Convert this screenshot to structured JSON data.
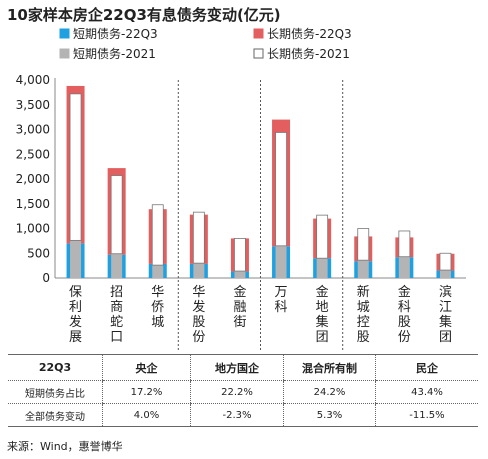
{
  "title": "10家样本房企22Q3有息债务变动(亿元)",
  "chart_data": {
    "type": "bar",
    "categories": [
      "保利发展",
      "招商蛇口",
      "华侨城",
      "华发股份",
      "金融街",
      "万科",
      "金地集团",
      "新城控股",
      "金科股份",
      "滨江集团"
    ],
    "series": [
      {
        "name": "短期债务-22Q3",
        "color": "#1fa0e0",
        "values": [
          700,
          470,
          285,
          285,
          130,
          640,
          400,
          340,
          420,
          150
        ]
      },
      {
        "name": "长期债务-22Q3",
        "color": "#e35e5e",
        "values": [
          3180,
          1750,
          1105,
          995,
          670,
          2560,
          800,
          500,
          400,
          340
        ]
      },
      {
        "name": "短期债务-2021",
        "color": "#b4b4b4",
        "values": [
          760,
          490,
          260,
          300,
          140,
          650,
          400,
          360,
          430,
          160
        ]
      },
      {
        "name": "长期债务-2021",
        "color": "#ffffff",
        "values": [
          2960,
          1580,
          1220,
          1030,
          660,
          2290,
          870,
          640,
          520,
          340
        ]
      }
    ],
    "yticks": [
      "0",
      "500",
      "1,000",
      "1,500",
      "2,000",
      "2,500",
      "3,000",
      "3,500",
      "4,000"
    ],
    "ylim": [
      0,
      4000
    ],
    "groups": [
      [
        0,
        2
      ],
      [
        3,
        4
      ],
      [
        5,
        6
      ],
      [
        7,
        9
      ]
    ],
    "legend": "top"
  },
  "table": {
    "header": [
      "22Q3",
      "央企",
      "地方国企",
      "混合所有制",
      "民企"
    ],
    "rows": [
      [
        "短期债务占比",
        "17.2%",
        "22.2%",
        "24.2%",
        "43.4%"
      ],
      [
        "全部债务变动",
        "4.0%",
        "-2.3%",
        "5.3%",
        "-11.5%"
      ]
    ]
  },
  "source": "来源：Wind，惠誉博华"
}
